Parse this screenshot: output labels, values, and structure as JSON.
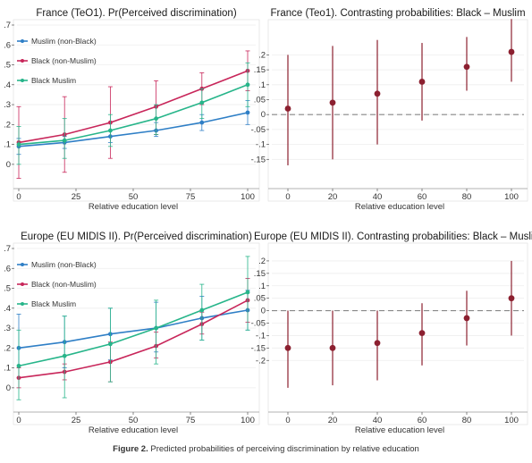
{
  "chart_data": [
    {
      "type": "line",
      "title": "France (TeO1). Pr(Perceived discrimination)",
      "xlabel": "Relative education level",
      "ylabel": "",
      "x": [
        0,
        20,
        40,
        60,
        80,
        100
      ],
      "xticks": [
        0,
        25,
        50,
        75,
        100
      ],
      "xlim": [
        0,
        100
      ],
      "ylim": [
        -0.05,
        0.7
      ],
      "yticks": [
        0,
        0.1,
        0.2,
        0.3,
        0.4,
        0.5,
        0.6,
        0.7
      ],
      "ytick_labels": [
        "0",
        ".1",
        ".2",
        ".3",
        ".4",
        ".5",
        ".6",
        ".7"
      ],
      "grid": true,
      "legend": "top-left",
      "series": [
        {
          "name": "Muslim (non-Black)",
          "color": "#2f7fc6",
          "values": [
            0.09,
            0.11,
            0.14,
            0.17,
            0.21,
            0.26
          ],
          "ci": [
            [
              0.05,
              0.13
            ],
            [
              0.08,
              0.14
            ],
            [
              0.11,
              0.17
            ],
            [
              0.14,
              0.21
            ],
            [
              0.17,
              0.25
            ],
            [
              0.2,
              0.32
            ]
          ]
        },
        {
          "name": "Black (non-Muslim)",
          "color": "#c8265a",
          "values": [
            0.11,
            0.15,
            0.21,
            0.29,
            0.38,
            0.47
          ],
          "ci": [
            [
              -0.07,
              0.29
            ],
            [
              -0.04,
              0.34
            ],
            [
              0.03,
              0.39
            ],
            [
              0.15,
              0.42
            ],
            [
              0.3,
              0.46
            ],
            [
              0.37,
              0.57
            ]
          ]
        },
        {
          "name": "Black Muslim",
          "color": "#27b58a",
          "values": [
            0.1,
            0.12,
            0.17,
            0.23,
            0.31,
            0.4
          ],
          "ci": [
            [
              0.0,
              0.19
            ],
            [
              0.03,
              0.23
            ],
            [
              0.09,
              0.25
            ],
            [
              0.15,
              0.3
            ],
            [
              0.23,
              0.38
            ],
            [
              0.29,
              0.51
            ]
          ]
        }
      ]
    },
    {
      "type": "scatter",
      "title": "France (Teo1). Contrasting probabilities: Black – Muslim",
      "xlabel": "Relative education level",
      "ylabel": "",
      "x": [
        0,
        20,
        40,
        60,
        80,
        100
      ],
      "xticks": [
        0,
        20,
        40,
        60,
        80,
        100
      ],
      "xlim": [
        0,
        100
      ],
      "ylim": [
        -0.2,
        0.3
      ],
      "yticks": [
        -0.15,
        -0.1,
        -0.05,
        0,
        0.05,
        0.1,
        0.15,
        0.2
      ],
      "ytick_labels": [
        "-.15",
        "-.1",
        "-.05",
        "0",
        ".05",
        ".1",
        ".15",
        ".2"
      ],
      "reference_line": 0,
      "grid": true,
      "series": [
        {
          "name": "",
          "color": "#8c2030",
          "values": [
            0.02,
            0.04,
            0.07,
            0.11,
            0.16,
            0.21
          ],
          "ci": [
            [
              -0.17,
              0.2
            ],
            [
              -0.15,
              0.23
            ],
            [
              -0.1,
              0.25
            ],
            [
              -0.02,
              0.24
            ],
            [
              0.08,
              0.26
            ],
            [
              0.11,
              0.32
            ]
          ]
        }
      ]
    },
    {
      "type": "line",
      "title": "Europe (EU MIDIS II). Pr(Perceived discrimination)",
      "xlabel": "Relative education level",
      "ylabel": "",
      "x": [
        0,
        20,
        40,
        60,
        80,
        100
      ],
      "xticks": [
        0,
        25,
        50,
        75,
        100
      ],
      "xlim": [
        0,
        100
      ],
      "ylim": [
        -0.05,
        0.7
      ],
      "yticks": [
        0,
        0.1,
        0.2,
        0.3,
        0.4,
        0.5,
        0.6,
        0.7
      ],
      "ytick_labels": [
        "0",
        ".1",
        ".2",
        ".3",
        ".4",
        ".5",
        ".6",
        ".7"
      ],
      "grid": true,
      "legend": "top-left",
      "series": [
        {
          "name": "Muslim (non-Black)",
          "color": "#2f7fc6",
          "values": [
            0.2,
            0.23,
            0.27,
            0.3,
            0.35,
            0.39
          ],
          "ci": [
            [
              0.05,
              0.37
            ],
            [
              0.1,
              0.36
            ],
            [
              0.14,
              0.4
            ],
            [
              0.18,
              0.43
            ],
            [
              0.24,
              0.46
            ],
            [
              0.29,
              0.49
            ]
          ]
        },
        {
          "name": "Black (non-Muslim)",
          "color": "#c8265a",
          "values": [
            0.05,
            0.08,
            0.13,
            0.21,
            0.32,
            0.44
          ],
          "ci": [
            [
              0.0,
              0.1
            ],
            [
              0.04,
              0.12
            ],
            [
              0.03,
              0.23
            ],
            [
              0.15,
              0.28
            ],
            [
              0.27,
              0.38
            ],
            [
              0.33,
              0.55
            ]
          ]
        },
        {
          "name": "Black Muslim",
          "color": "#27b58a",
          "values": [
            0.11,
            0.16,
            0.22,
            0.3,
            0.39,
            0.48
          ],
          "ci": [
            [
              -0.06,
              0.29
            ],
            [
              -0.05,
              0.36
            ],
            [
              0.03,
              0.4
            ],
            [
              0.12,
              0.44
            ],
            [
              0.24,
              0.52
            ],
            [
              0.29,
              0.66
            ]
          ]
        }
      ]
    },
    {
      "type": "scatter",
      "title": "Europe (EU MIDIS II). Contrasting probabilities: Black – Muslim",
      "xlabel": "Relative education level",
      "ylabel": "",
      "x": [
        0,
        20,
        40,
        60,
        80,
        100
      ],
      "xticks": [
        0,
        20,
        40,
        60,
        80,
        100
      ],
      "xlim": [
        0,
        100
      ],
      "ylim": [
        -0.35,
        0.25
      ],
      "yticks": [
        -0.2,
        -0.15,
        -0.1,
        -0.05,
        0,
        0.05,
        0.1,
        0.15,
        0.2
      ],
      "ytick_labels": [
        "-.2",
        "-.15",
        "-.1",
        "-.05",
        "0",
        ".05",
        ".1",
        ".15",
        ".2"
      ],
      "reference_line": 0,
      "grid": true,
      "series": [
        {
          "name": "",
          "color": "#8c2030",
          "values": [
            -0.15,
            -0.15,
            -0.13,
            -0.09,
            -0.03,
            0.05
          ],
          "ci": [
            [
              -0.31,
              0.0
            ],
            [
              -0.3,
              0.0
            ],
            [
              -0.28,
              0.0
            ],
            [
              -0.22,
              0.03
            ],
            [
              -0.14,
              0.08
            ],
            [
              -0.1,
              0.2
            ]
          ]
        }
      ]
    }
  ],
  "caption": {
    "label": "Figure 2.",
    "text": "Predicted probabilities of perceiving discrimination by relative education"
  }
}
